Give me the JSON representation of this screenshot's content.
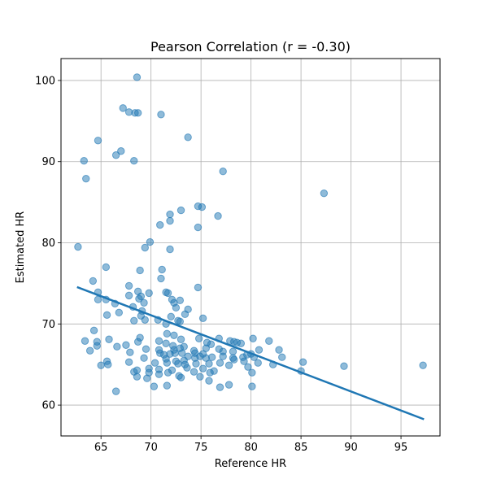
{
  "chart_data": {
    "type": "scatter",
    "title": "Pearson Correlation (r = -0.30)",
    "xlabel": "Reference HR",
    "ylabel": "Estimated HR",
    "xlim": [
      61.0,
      98.9
    ],
    "ylim": [
      56.2,
      102.7
    ],
    "xticks": [
      65,
      70,
      75,
      80,
      85,
      90,
      95
    ],
    "yticks": [
      60,
      70,
      80,
      90,
      100
    ],
    "grid": true,
    "colors": {
      "points": "#1f77b4",
      "fit_line": "#1f77b4"
    },
    "fit_line": {
      "x": [
        62.7,
        97.2
      ],
      "y": [
        74.5,
        58.3
      ]
    },
    "points": [
      [
        68.6,
        100.4
      ],
      [
        67.2,
        96.6
      ],
      [
        67.8,
        96.1
      ],
      [
        68.4,
        96.0
      ],
      [
        68.7,
        96.0
      ],
      [
        71.0,
        95.8
      ],
      [
        73.7,
        93.0
      ],
      [
        64.7,
        92.6
      ],
      [
        67.0,
        91.3
      ],
      [
        66.5,
        90.8
      ],
      [
        63.3,
        90.1
      ],
      [
        68.3,
        90.1
      ],
      [
        77.2,
        88.8
      ],
      [
        63.5,
        87.9
      ],
      [
        87.3,
        86.1
      ],
      [
        74.7,
        84.5
      ],
      [
        75.1,
        84.4
      ],
      [
        73.0,
        84.0
      ],
      [
        71.9,
        83.5
      ],
      [
        76.7,
        83.3
      ],
      [
        71.9,
        82.7
      ],
      [
        70.9,
        82.2
      ],
      [
        74.7,
        81.9
      ],
      [
        69.9,
        80.1
      ],
      [
        69.4,
        79.4
      ],
      [
        62.7,
        79.5
      ],
      [
        71.9,
        79.2
      ],
      [
        65.5,
        77.0
      ],
      [
        71.1,
        76.7
      ],
      [
        68.9,
        76.6
      ],
      [
        71.0,
        75.6
      ],
      [
        64.2,
        75.3
      ],
      [
        67.8,
        74.7
      ],
      [
        74.7,
        74.5
      ],
      [
        68.7,
        74.0
      ],
      [
        71.5,
        73.9
      ],
      [
        71.7,
        73.8
      ],
      [
        69.8,
        73.8
      ],
      [
        64.7,
        73.9
      ],
      [
        67.8,
        73.5
      ],
      [
        69.0,
        73.4
      ],
      [
        68.8,
        73.1
      ],
      [
        64.7,
        73.0
      ],
      [
        65.5,
        73.0
      ],
      [
        72.1,
        73.0
      ],
      [
        72.3,
        72.6
      ],
      [
        69.3,
        72.6
      ],
      [
        66.4,
        72.5
      ],
      [
        68.2,
        72.1
      ],
      [
        72.9,
        72.9
      ],
      [
        72.5,
        72.0
      ],
      [
        73.7,
        71.8
      ],
      [
        66.8,
        71.4
      ],
      [
        69.1,
        71.6
      ],
      [
        65.6,
        71.1
      ],
      [
        69.0,
        71.0
      ],
      [
        73.4,
        71.2
      ],
      [
        75.2,
        70.7
      ],
      [
        72.0,
        70.9
      ],
      [
        68.3,
        70.4
      ],
      [
        69.4,
        70.5
      ],
      [
        70.7,
        70.5
      ],
      [
        72.7,
        70.4
      ],
      [
        72.9,
        70.3
      ],
      [
        71.5,
        70.0
      ],
      [
        64.3,
        69.2
      ],
      [
        71.6,
        68.8
      ],
      [
        72.3,
        68.6
      ],
      [
        76.8,
        68.2
      ],
      [
        80.2,
        68.2
      ],
      [
        81.8,
        67.9
      ],
      [
        68.9,
        68.3
      ],
      [
        63.4,
        67.9
      ],
      [
        64.6,
        67.8
      ],
      [
        65.8,
        68.1
      ],
      [
        70.8,
        67.9
      ],
      [
        73.0,
        68.1
      ],
      [
        74.8,
        68.2
      ],
      [
        77.9,
        67.9
      ],
      [
        78.3,
        67.8
      ],
      [
        78.6,
        67.7
      ],
      [
        75.6,
        67.7
      ],
      [
        79.0,
        67.6
      ],
      [
        76.0,
        67.5
      ],
      [
        67.5,
        67.4
      ],
      [
        68.7,
        67.8
      ],
      [
        71.5,
        67.6
      ],
      [
        72.2,
        67.3
      ],
      [
        73.3,
        67.2
      ],
      [
        66.6,
        67.2
      ],
      [
        64.6,
        67.3
      ],
      [
        72.9,
        67.0
      ],
      [
        75.5,
        67.0
      ],
      [
        76.8,
        66.9
      ],
      [
        80.8,
        66.8
      ],
      [
        82.8,
        66.8
      ],
      [
        69.5,
        66.9
      ],
      [
        70.8,
        66.8
      ],
      [
        72.3,
        66.8
      ],
      [
        74.3,
        66.7
      ],
      [
        77.2,
        66.6
      ],
      [
        78.2,
        66.6
      ],
      [
        63.9,
        66.7
      ],
      [
        71.9,
        66.3
      ],
      [
        72.4,
        66.4
      ],
      [
        73.1,
        66.4
      ],
      [
        74.4,
        66.4
      ],
      [
        75.2,
        66.3
      ],
      [
        77.2,
        66.0
      ],
      [
        79.6,
        66.2
      ],
      [
        80.0,
        66.3
      ],
      [
        67.9,
        66.5
      ],
      [
        70.9,
        66.4
      ],
      [
        71.3,
        66.2
      ],
      [
        73.7,
        66.0
      ],
      [
        74.9,
        66.0
      ],
      [
        76.1,
        65.9
      ],
      [
        78.2,
        65.8
      ],
      [
        79.2,
        65.9
      ],
      [
        80.3,
        65.9
      ],
      [
        83.1,
        65.9
      ],
      [
        69.3,
        65.8
      ],
      [
        71.5,
        65.7
      ],
      [
        72.5,
        65.4
      ],
      [
        73.3,
        65.5
      ],
      [
        74.4,
        65.8
      ],
      [
        75.5,
        65.8
      ],
      [
        78.3,
        65.6
      ],
      [
        79.3,
        65.4
      ],
      [
        80.7,
        65.2
      ],
      [
        85.2,
        65.3
      ],
      [
        65.6,
        65.4
      ],
      [
        67.8,
        65.3
      ],
      [
        70.4,
        65.2
      ],
      [
        71.6,
        65.2
      ],
      [
        72.7,
        65.1
      ],
      [
        73.4,
        65.0
      ],
      [
        74.5,
        65.1
      ],
      [
        75.8,
        65.1
      ],
      [
        76.9,
        65.2
      ],
      [
        77.8,
        64.9
      ],
      [
        79.7,
        64.7
      ],
      [
        82.2,
        65.0
      ],
      [
        89.3,
        64.8
      ],
      [
        97.2,
        64.9
      ],
      [
        65.0,
        64.9
      ],
      [
        65.7,
        65.0
      ],
      [
        69.8,
        64.5
      ],
      [
        70.8,
        64.4
      ],
      [
        72.1,
        64.3
      ],
      [
        73.6,
        64.6
      ],
      [
        75.2,
        64.5
      ],
      [
        76.3,
        64.2
      ],
      [
        68.3,
        64.1
      ],
      [
        68.6,
        64.3
      ],
      [
        71.7,
        64.0
      ],
      [
        74.3,
        64.1
      ],
      [
        75.9,
        64.0
      ],
      [
        80.1,
        64.0
      ],
      [
        85.0,
        64.2
      ],
      [
        69.8,
        64.0
      ],
      [
        70.8,
        63.8
      ],
      [
        72.8,
        63.6
      ],
      [
        73.0,
        63.4
      ],
      [
        74.9,
        63.5
      ],
      [
        68.6,
        63.5
      ],
      [
        69.6,
        63.3
      ],
      [
        75.8,
        63.0
      ],
      [
        77.8,
        62.5
      ],
      [
        70.3,
        62.3
      ],
      [
        71.6,
        62.4
      ],
      [
        80.1,
        62.3
      ],
      [
        76.9,
        62.2
      ],
      [
        66.5,
        61.7
      ]
    ]
  }
}
